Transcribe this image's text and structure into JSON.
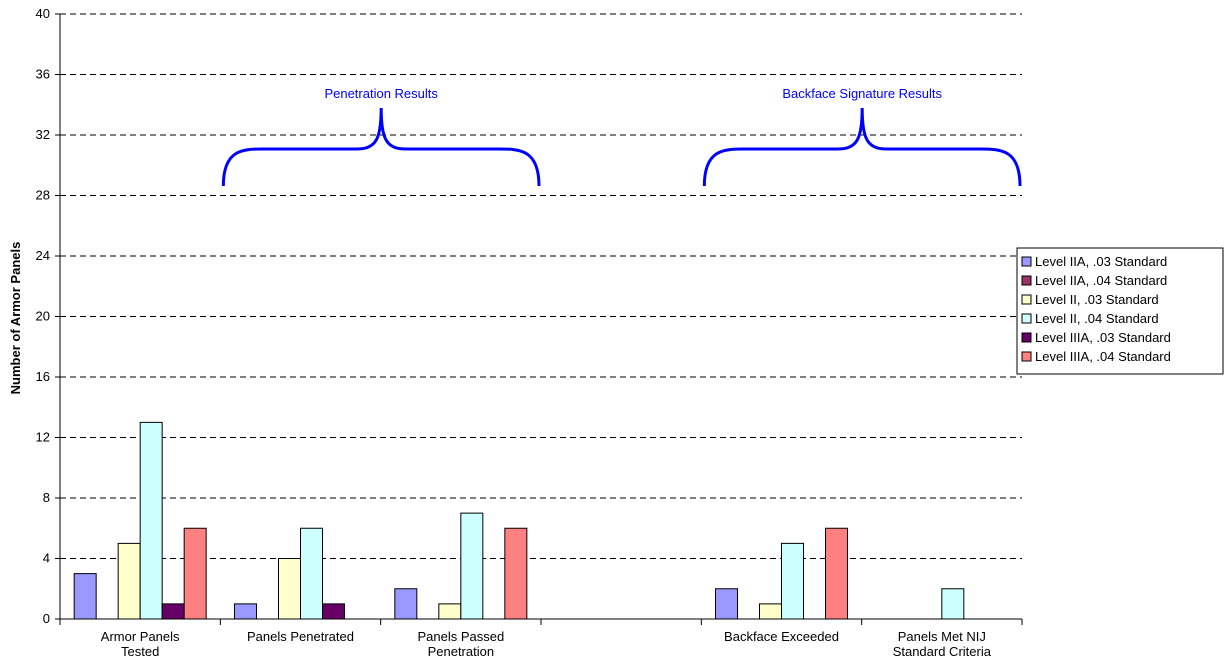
{
  "chart_data": {
    "type": "bar",
    "title": "",
    "xlabel": "",
    "ylabel": "Number of Armor Panels",
    "ylim": [
      0,
      40
    ],
    "yticks": [
      0,
      4,
      8,
      12,
      16,
      20,
      24,
      28,
      32,
      36,
      40
    ],
    "grid": "horizontal dashed",
    "legend_position": "right",
    "categories": [
      [
        "Armor Panels",
        "Tested"
      ],
      [
        "Panels Penetrated"
      ],
      [
        "Panels Passed",
        "Penetration"
      ],
      [],
      [
        "Backface Exceeded"
      ],
      [
        "Panels Met NIJ",
        "Standard Criteria"
      ]
    ],
    "series": [
      {
        "name": "Level IIA, .03 Standard",
        "color": "#9999ff",
        "values": [
          3,
          1,
          2,
          null,
          2,
          0
        ]
      },
      {
        "name": "Level IIA, .04 Standard",
        "color": "#993366",
        "values": [
          0,
          0,
          0,
          null,
          0,
          0
        ]
      },
      {
        "name": "Level II, .03 Standard",
        "color": "#ffffcc",
        "values": [
          5,
          4,
          1,
          null,
          1,
          0
        ]
      },
      {
        "name": "Level II, .04 Standard",
        "color": "#ccffff",
        "values": [
          13,
          6,
          7,
          null,
          5,
          2
        ]
      },
      {
        "name": "Level IIIA, .03 Standard",
        "color": "#660066",
        "values": [
          1,
          1,
          0,
          null,
          0,
          0
        ]
      },
      {
        "name": "Level IIIA, .04 Standard",
        "color": "#ff8080",
        "values": [
          6,
          0,
          6,
          null,
          6,
          0
        ]
      }
    ],
    "annotations": [
      {
        "text": "Penetration Results",
        "spans_categories": [
          1,
          2
        ],
        "color": "#0000ff"
      },
      {
        "text": "Backface Signature Results",
        "spans_categories": [
          4,
          5
        ],
        "color": "#0000ff"
      }
    ]
  }
}
